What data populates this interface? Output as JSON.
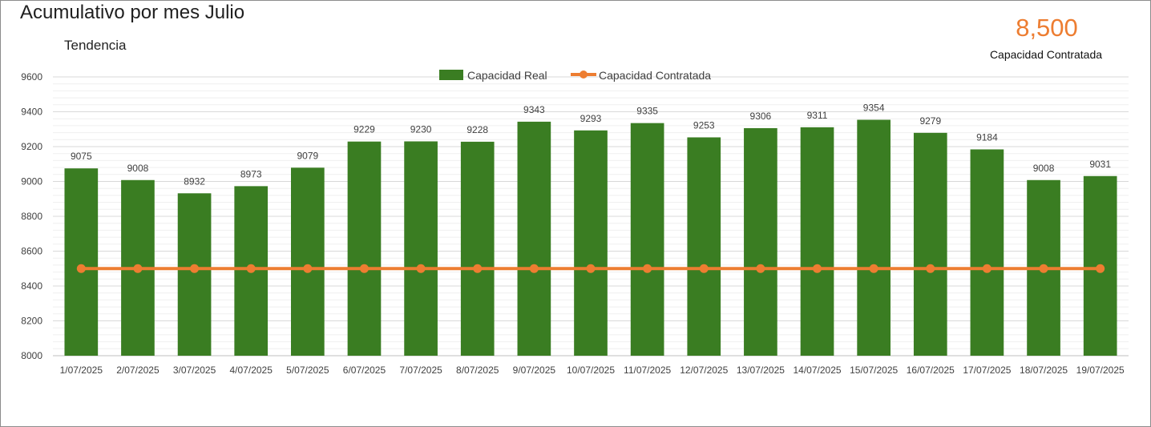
{
  "header": {
    "title": "Acumulativo por mes Julio",
    "subtitle": "Tendencia"
  },
  "kpi": {
    "value": "8,500",
    "label": "Capacidad Contratada",
    "color": "#ED7D31"
  },
  "chart_data": {
    "type": "bar",
    "title": "Acumulativo por mes Julio",
    "subtitle": "Tendencia",
    "categories": [
      "1/07/2025",
      "2/07/2025",
      "3/07/2025",
      "4/07/2025",
      "5/07/2025",
      "6/07/2025",
      "7/07/2025",
      "8/07/2025",
      "9/07/2025",
      "10/07/2025",
      "11/07/2025",
      "12/07/2025",
      "13/07/2025",
      "14/07/2025",
      "15/07/2025",
      "16/07/2025",
      "17/07/2025",
      "18/07/2025",
      "19/07/2025"
    ],
    "series": [
      {
        "name": "Capacidad Real",
        "type": "bar",
        "color": "#3A7D22",
        "values": [
          9075,
          9008,
          8932,
          8973,
          9079,
          9229,
          9230,
          9228,
          9343,
          9293,
          9335,
          9253,
          9306,
          9311,
          9354,
          9279,
          9184,
          9008,
          9031
        ]
      },
      {
        "name": "Capacidad Contratada",
        "type": "line",
        "color": "#ED7D31",
        "values": [
          8500,
          8500,
          8500,
          8500,
          8500,
          8500,
          8500,
          8500,
          8500,
          8500,
          8500,
          8500,
          8500,
          8500,
          8500,
          8500,
          8500,
          8500,
          8500
        ]
      }
    ],
    "ylim": [
      8000,
      9600
    ],
    "yticks": [
      8000,
      8200,
      8400,
      8600,
      8800,
      9000,
      9200,
      9400,
      9600
    ],
    "grid": true,
    "legend_position": "top-center",
    "data_labels": true
  }
}
